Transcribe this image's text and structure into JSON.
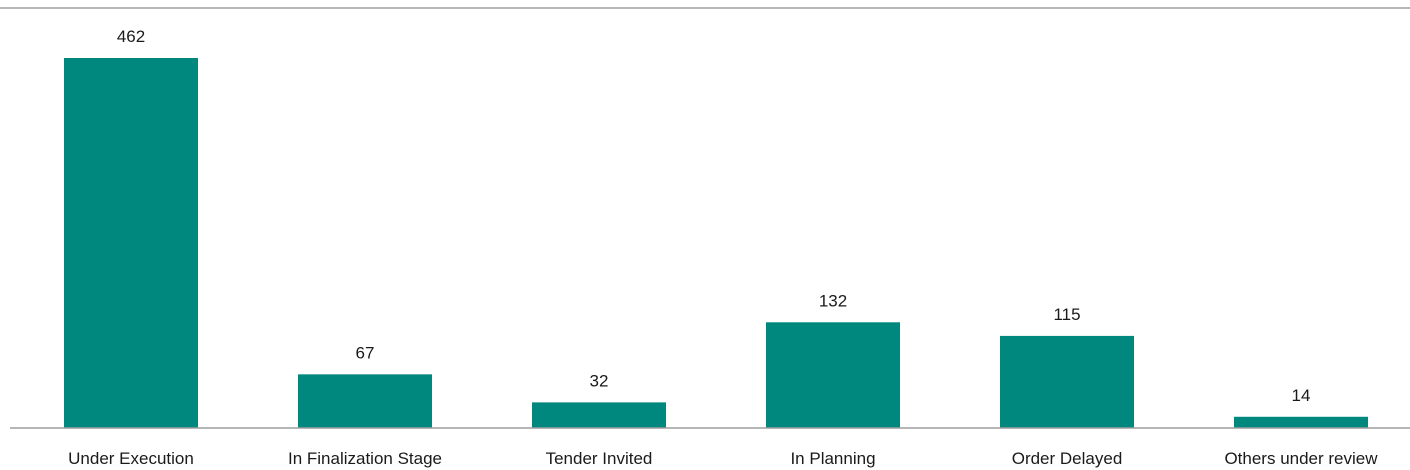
{
  "chart_data": {
    "type": "bar",
    "categories": [
      "Under Execution",
      "In Finalization Stage",
      "Tender Invited",
      "In Planning",
      "Order Delayed",
      "Others under review"
    ],
    "values": [
      462,
      67,
      32,
      132,
      115,
      14
    ],
    "data_labels": [
      "462",
      "67",
      "32",
      "132",
      "115",
      "14"
    ],
    "title": "",
    "xlabel": "",
    "ylabel": "",
    "ylim": [
      0,
      480
    ],
    "grid": false,
    "legend": "none",
    "bar_color": "#00887F",
    "axis_color": "#9e9e9e"
  }
}
